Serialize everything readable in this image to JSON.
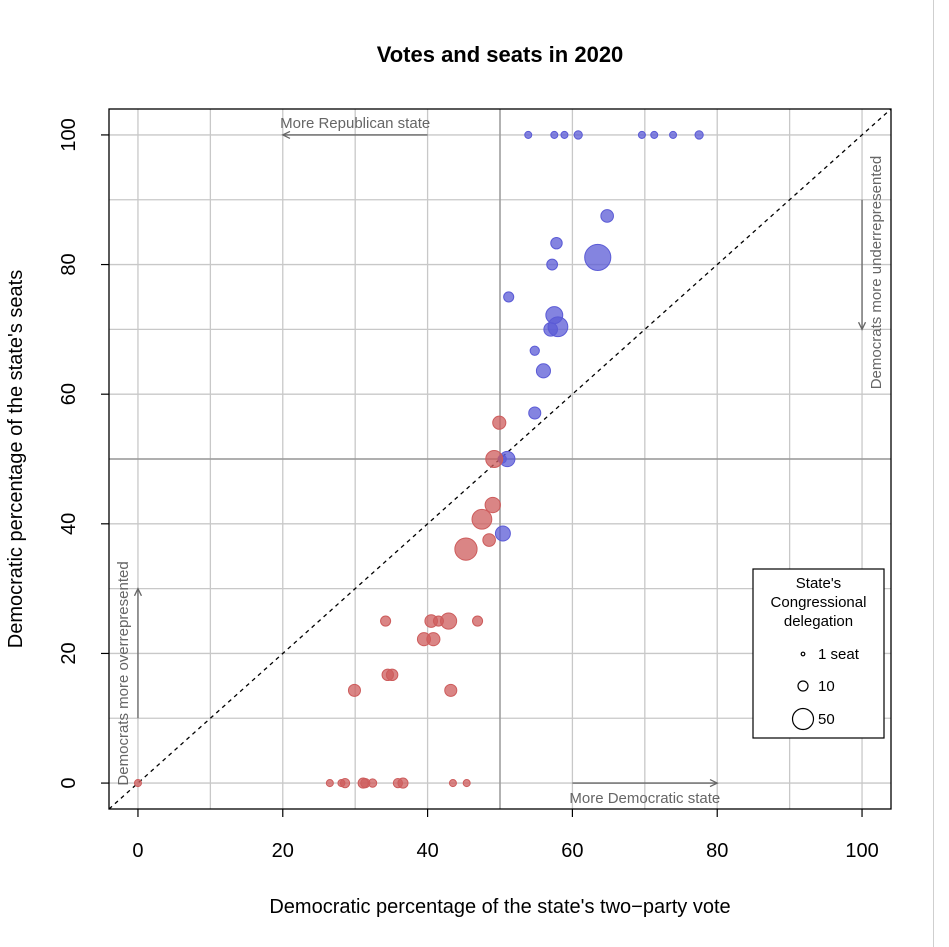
{
  "chart_data": {
    "type": "scatter",
    "title": "Votes and seats in 2020",
    "xlabel": "Democratic percentage of the state's two−party vote",
    "ylabel": "Democratic percentage of the state's seats",
    "xlim": [
      -4,
      104
    ],
    "ylim": [
      -4,
      104
    ],
    "x_ticks": [
      0,
      20,
      40,
      60,
      80,
      100
    ],
    "y_ticks": [
      0,
      20,
      40,
      60,
      80,
      100
    ],
    "x_tick_labels": [
      "0",
      "20",
      "40",
      "60",
      "80",
      "100"
    ],
    "y_tick_labels": [
      "0",
      "20",
      "40",
      "60",
      "80",
      "100"
    ],
    "grid": true,
    "reference_lines": {
      "diagonal": "y = x",
      "vertical": 50,
      "horizontal": 50
    },
    "colors": {
      "democratic": "#5b5bd6",
      "republican": "#cd5c5c",
      "grid": "#c8c8c8",
      "annotation": "#666666"
    },
    "annotations": [
      {
        "text": "More Republican state",
        "arrow_from": [
          40,
          100
        ],
        "arrow_to": [
          20,
          100
        ]
      },
      {
        "text": "More Democratic state",
        "arrow_from": [
          60,
          0
        ],
        "arrow_to": [
          80,
          0
        ]
      },
      {
        "text": "Democrats more underrepresented",
        "arrow_from": [
          100,
          90
        ],
        "arrow_to": [
          100,
          70
        ]
      },
      {
        "text": "Democrats more overrepresented",
        "arrow_from": [
          0,
          10
        ],
        "arrow_to": [
          0,
          30
        ]
      }
    ],
    "legend": {
      "title_lines": [
        "State's",
        "Congressional",
        "delegation"
      ],
      "position": "bottom-right",
      "entries": [
        {
          "label": "1 seat",
          "seats": 1
        },
        {
          "label": "10",
          "seats": 10
        },
        {
          "label": "50",
          "seats": 50
        }
      ]
    },
    "series": [
      {
        "party": "democratic",
        "points": [
          {
            "x": 53.9,
            "y": 100,
            "seats": 1
          },
          {
            "x": 57.5,
            "y": 100,
            "seats": 1
          },
          {
            "x": 58.9,
            "y": 100,
            "seats": 1
          },
          {
            "x": 60.8,
            "y": 100,
            "seats": 2
          },
          {
            "x": 69.6,
            "y": 100,
            "seats": 1
          },
          {
            "x": 71.3,
            "y": 100,
            "seats": 1
          },
          {
            "x": 73.9,
            "y": 100,
            "seats": 1
          },
          {
            "x": 77.5,
            "y": 100,
            "seats": 2
          },
          {
            "x": 64.8,
            "y": 87.5,
            "seats": 8
          },
          {
            "x": 57.8,
            "y": 83.3,
            "seats": 6
          },
          {
            "x": 63.5,
            "y": 81.1,
            "seats": 53
          },
          {
            "x": 57.2,
            "y": 80.0,
            "seats": 5
          },
          {
            "x": 51.2,
            "y": 75.0,
            "seats": 4
          },
          {
            "x": 57.5,
            "y": 72.2,
            "seats": 18
          },
          {
            "x": 58.0,
            "y": 70.4,
            "seats": 27
          },
          {
            "x": 57.0,
            "y": 70.0,
            "seats": 10
          },
          {
            "x": 54.8,
            "y": 66.7,
            "seats": 3
          },
          {
            "x": 56.0,
            "y": 63.6,
            "seats": 11
          },
          {
            "x": 54.8,
            "y": 57.1,
            "seats": 7
          },
          {
            "x": 51.0,
            "y": 50.0,
            "seats": 14
          },
          {
            "x": 50.3,
            "y": 50.0,
            "seats": 2
          },
          {
            "x": 50.4,
            "y": 38.5,
            "seats": 13
          }
        ]
      },
      {
        "party": "republican",
        "points": [
          {
            "x": 49.9,
            "y": 55.6,
            "seats": 9
          },
          {
            "x": 49.2,
            "y": 50.0,
            "seats": 18
          },
          {
            "x": 49.0,
            "y": 42.9,
            "seats": 14
          },
          {
            "x": 47.5,
            "y": 40.7,
            "seats": 27
          },
          {
            "x": 48.5,
            "y": 37.5,
            "seats": 8
          },
          {
            "x": 45.3,
            "y": 36.1,
            "seats": 36
          },
          {
            "x": 40.5,
            "y": 25.0,
            "seats": 8
          },
          {
            "x": 41.5,
            "y": 25.0,
            "seats": 4
          },
          {
            "x": 42.9,
            "y": 25.0,
            "seats": 16
          },
          {
            "x": 46.9,
            "y": 25.0,
            "seats": 4
          },
          {
            "x": 34.2,
            "y": 25.0,
            "seats": 4
          },
          {
            "x": 39.5,
            "y": 22.2,
            "seats": 9
          },
          {
            "x": 40.8,
            "y": 22.2,
            "seats": 9
          },
          {
            "x": 34.5,
            "y": 16.7,
            "seats": 6
          },
          {
            "x": 35.1,
            "y": 16.7,
            "seats": 6
          },
          {
            "x": 29.9,
            "y": 14.3,
            "seats": 7
          },
          {
            "x": 43.2,
            "y": 14.3,
            "seats": 7
          },
          {
            "x": 0.0,
            "y": 0.0,
            "seats": 1
          },
          {
            "x": 26.5,
            "y": 0.0,
            "seats": 1
          },
          {
            "x": 28.1,
            "y": 0.0,
            "seats": 1
          },
          {
            "x": 28.6,
            "y": 0.0,
            "seats": 3
          },
          {
            "x": 31.1,
            "y": 0.0,
            "seats": 4
          },
          {
            "x": 31.4,
            "y": 0.0,
            "seats": 3
          },
          {
            "x": 32.4,
            "y": 0.0,
            "seats": 2
          },
          {
            "x": 35.9,
            "y": 0.0,
            "seats": 3
          },
          {
            "x": 36.6,
            "y": 0.0,
            "seats": 4
          },
          {
            "x": 43.5,
            "y": 0.0,
            "seats": 1
          },
          {
            "x": 45.4,
            "y": 0.0,
            "seats": 1
          }
        ]
      }
    ]
  }
}
